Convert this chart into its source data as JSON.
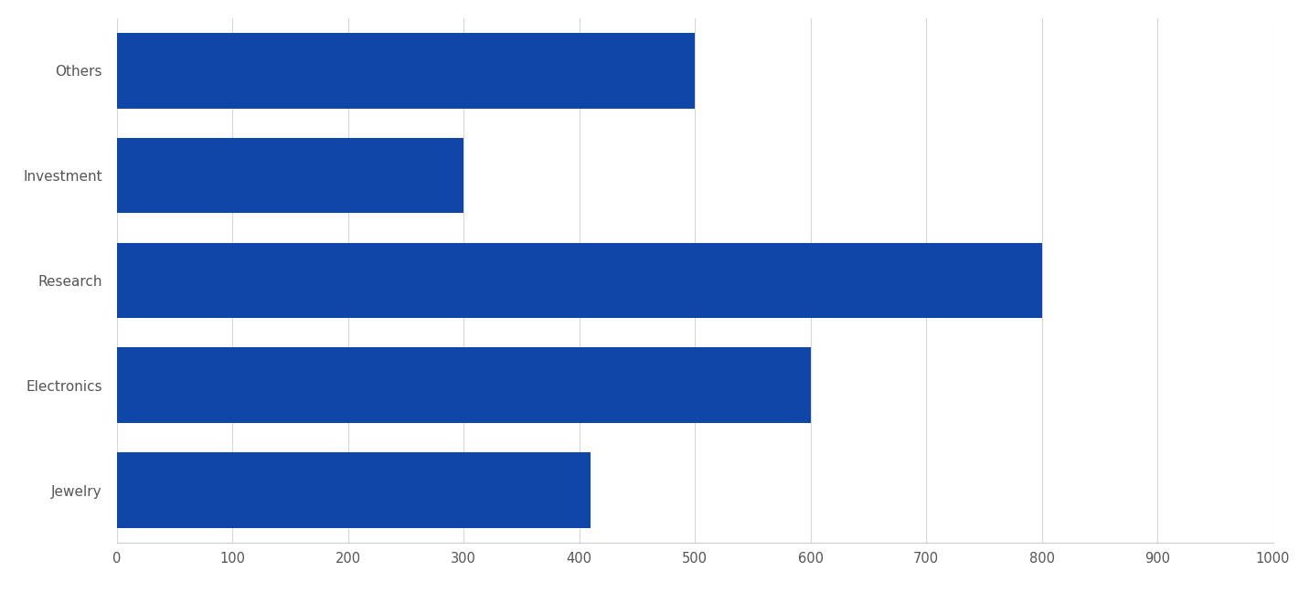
{
  "categories": [
    "Jewelry",
    "Electronics",
    "Research",
    "Investment",
    "Others"
  ],
  "values": [
    410,
    600,
    800,
    300,
    500
  ],
  "bar_color": "#1046a8",
  "background_color": "#ffffff",
  "xlim": [
    0,
    1000
  ],
  "xticks": [
    0,
    100,
    200,
    300,
    400,
    500,
    600,
    700,
    800,
    900,
    1000
  ],
  "grid_color": "#d8d8d8",
  "label_fontsize": 11,
  "tick_fontsize": 10.5,
  "bar_height": 0.72,
  "figsize": [
    14.21,
    6.6
  ],
  "dpi": 100
}
